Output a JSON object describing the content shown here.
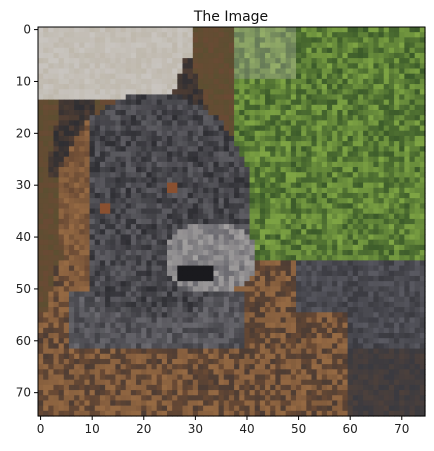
{
  "chart_data": {
    "type": "heatmap",
    "title": "The Image",
    "xlabel": "",
    "ylabel": "",
    "image_size": [
      75,
      75
    ],
    "xlim": [
      -0.5,
      74.5
    ],
    "ylim": [
      74.5,
      -0.5
    ],
    "x_ticks": [
      0,
      10,
      20,
      30,
      40,
      50,
      60,
      70
    ],
    "y_ticks": [
      0,
      10,
      20,
      30,
      40,
      50,
      60,
      70
    ],
    "grid": false,
    "legend": "none",
    "colors": {
      "frame": "#000000",
      "background": "#ffffff",
      "sky_top": "#b8b0a0",
      "foliage_green": "#7fa544",
      "foliage_dark": "#3b5a2a",
      "dog_dark": "#2e2e33",
      "dog_grey": "#6b6a70",
      "dog_tan": "#a9784a",
      "dog_brown": "#6a4a34",
      "table_grey": "#5a5a62",
      "table_dark": "#3a3a40",
      "light_grey": "#c9c5c0",
      "eye": "#8a5030",
      "nose": "#1a1a1e"
    }
  }
}
